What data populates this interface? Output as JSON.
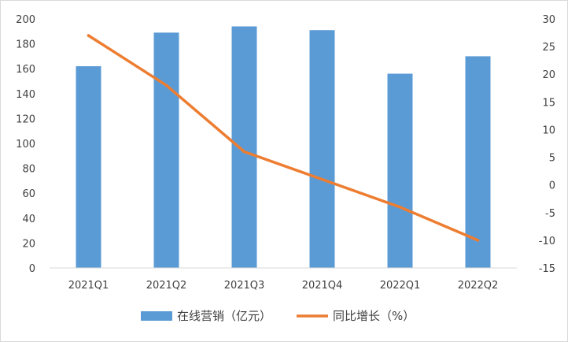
{
  "chart_data": {
    "type": "bar",
    "categories": [
      "2021Q1",
      "2021Q2",
      "2021Q3",
      "2021Q4",
      "2022Q1",
      "2022Q2"
    ],
    "series": [
      {
        "name": "在线营销（亿元）",
        "type": "bar",
        "axis": "left",
        "color": "#5B9BD5",
        "values": [
          162,
          189,
          194,
          191,
          156,
          170
        ]
      },
      {
        "name": "同比增长（%）",
        "type": "line",
        "axis": "right",
        "color": "#ED7D31",
        "values": [
          27,
          18,
          6,
          1,
          -4,
          -10
        ]
      }
    ],
    "ylim": [
      0,
      200
    ],
    "yticks": [
      0,
      20,
      40,
      60,
      80,
      100,
      120,
      140,
      160,
      180,
      200
    ],
    "y2lim": [
      -15,
      30
    ],
    "y2ticks": [
      -15,
      -10,
      -5,
      0,
      5,
      10,
      15,
      20,
      25,
      30
    ],
    "grid": false,
    "legend_position": "bottom"
  }
}
